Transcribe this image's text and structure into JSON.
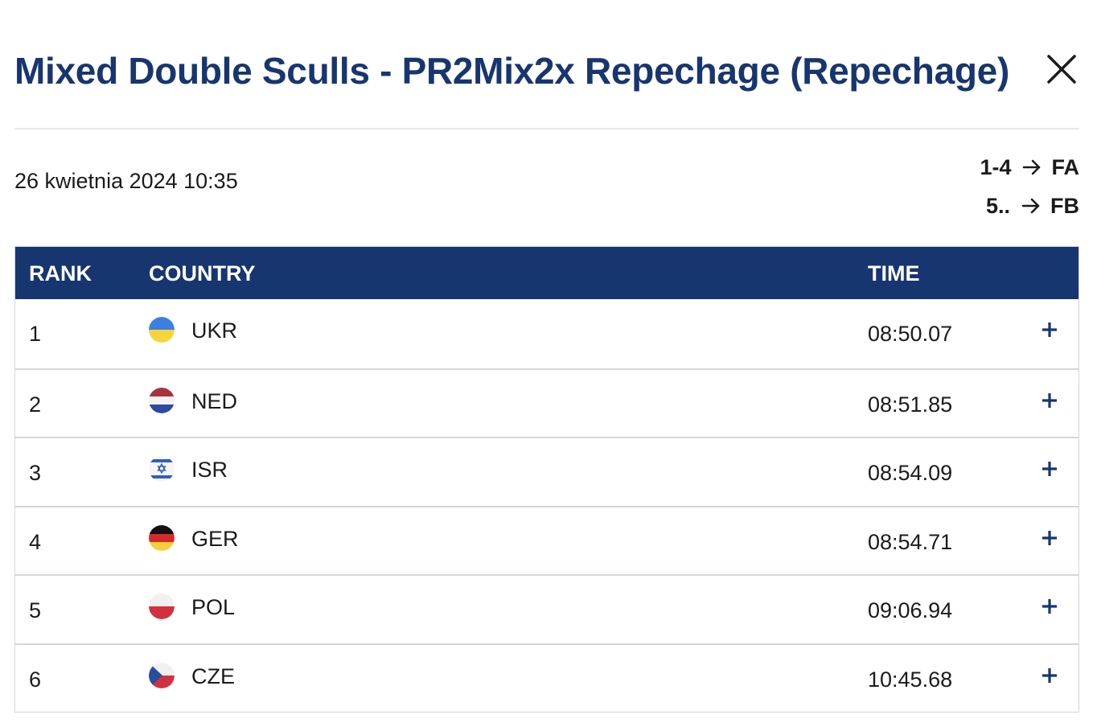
{
  "modal": {
    "title": "Mixed Double Sculls - PR2Mix2x Repechage (Repechage)",
    "close_icon": "close-icon"
  },
  "meta": {
    "date": "26 kwietnia 2024 10:35",
    "progression": [
      {
        "range": "1-4",
        "target": "FA",
        "icon": "arrow-right-icon"
      },
      {
        "range": "5..",
        "target": "FB",
        "icon": "arrow-right-icon"
      }
    ]
  },
  "table": {
    "headers": {
      "rank": "RANK",
      "country": "COUNTRY",
      "time": "TIME"
    },
    "rows": [
      {
        "rank": "1",
        "country": "UKR",
        "time": "08:50.07",
        "flag": "ukraine-flag-icon"
      },
      {
        "rank": "2",
        "country": "NED",
        "time": "08:51.85",
        "flag": "netherlands-flag-icon"
      },
      {
        "rank": "3",
        "country": "ISR",
        "time": "08:54.09",
        "flag": "israel-flag-icon"
      },
      {
        "rank": "4",
        "country": "GER",
        "time": "08:54.71",
        "flag": "germany-flag-icon"
      },
      {
        "rank": "5",
        "country": "POL",
        "time": "09:06.94",
        "flag": "poland-flag-icon"
      },
      {
        "rank": "6",
        "country": "CZE",
        "time": "10:45.68",
        "flag": "czechia-flag-icon"
      }
    ],
    "expand_icon": "plus-icon"
  },
  "colors": {
    "brand": "#17366f",
    "text": "#1b1b1b",
    "divider": "#d3d7de"
  }
}
